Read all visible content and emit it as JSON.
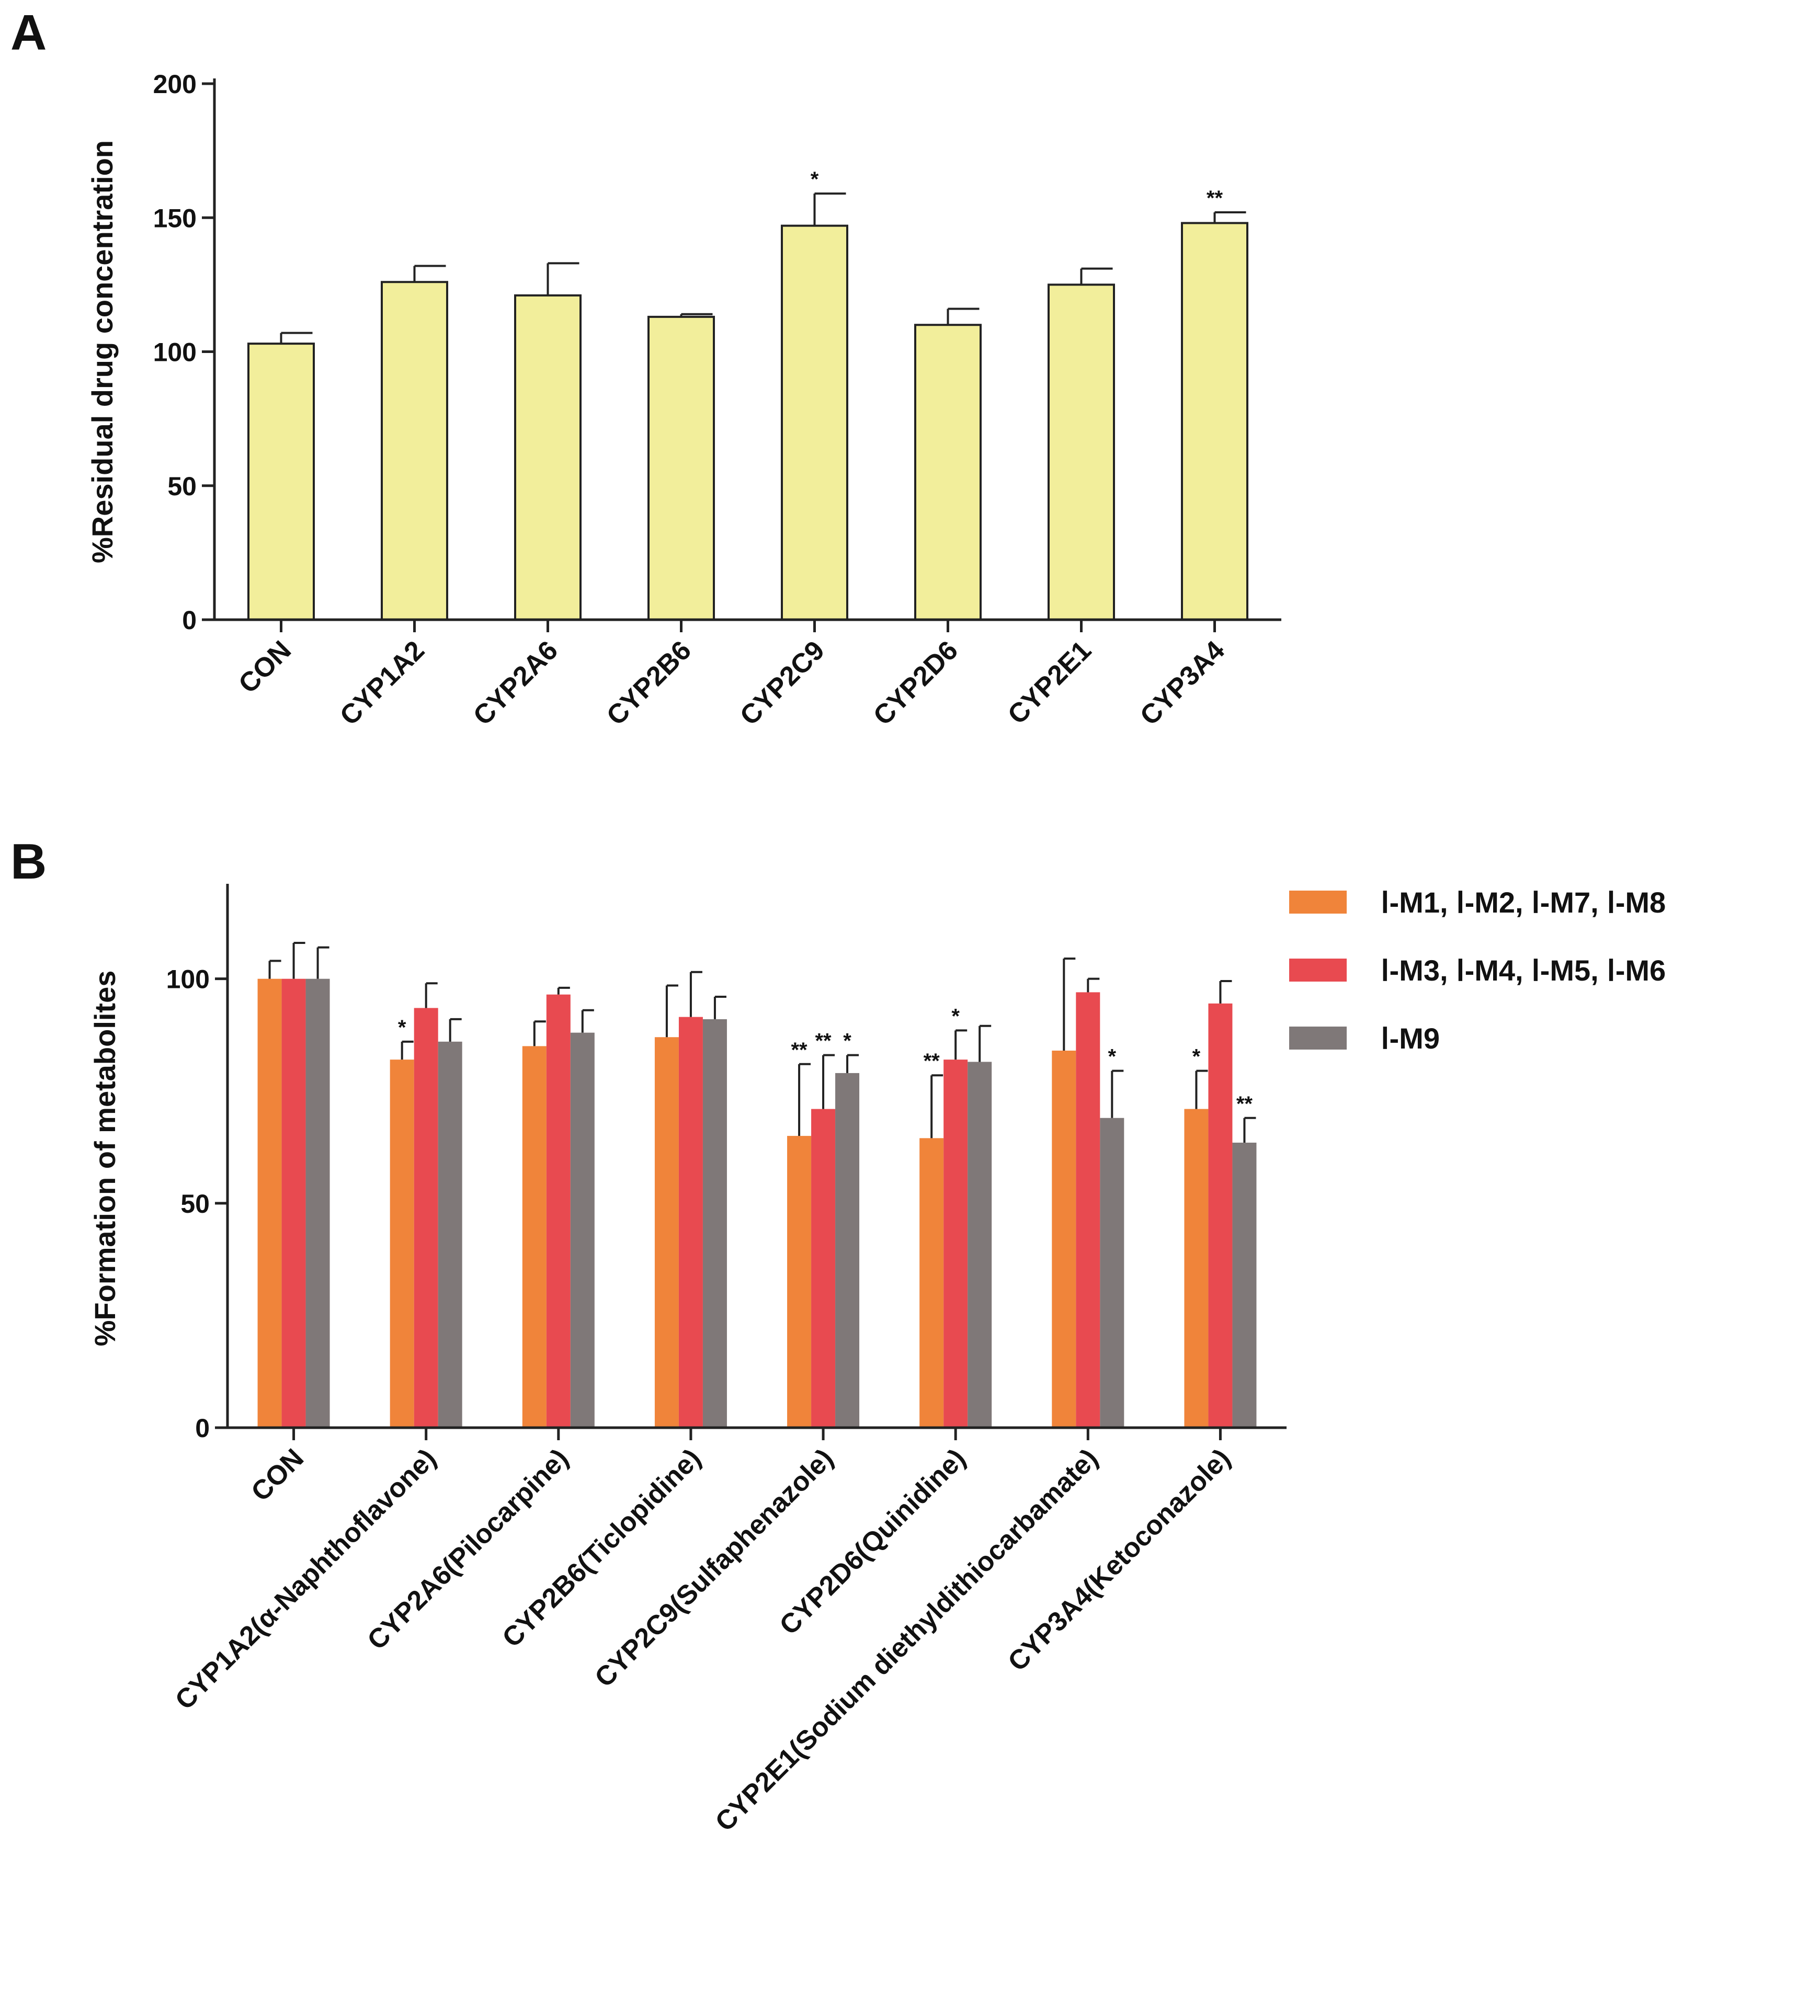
{
  "chart_data": [
    {
      "panel": "A",
      "type": "bar",
      "title": "",
      "xlabel": "",
      "ylabel": "%Residual drug concentration",
      "ylim": [
        0,
        200
      ],
      "yticks": [
        0,
        50,
        100,
        150,
        200
      ],
      "grid": false,
      "bar_color": "#f2ee9b",
      "categories": [
        "CON",
        "CYP1A2",
        "CYP2A6",
        "CYP2B6",
        "CYP2C9",
        "CYP2D6",
        "CYP2E1",
        "CYP3A4"
      ],
      "values": [
        103,
        126,
        121,
        113,
        147,
        110,
        125,
        148
      ],
      "errors": [
        4,
        6,
        12,
        1,
        12,
        6,
        6,
        4
      ],
      "significance": [
        "",
        "",
        "",
        "",
        "*",
        "",
        "",
        "**"
      ]
    },
    {
      "panel": "B",
      "type": "bar",
      "title": "",
      "xlabel": "",
      "ylabel": "%Formation of metabolites",
      "ylim": [
        0,
        120
      ],
      "yticks": [
        0,
        50,
        100
      ],
      "grid": false,
      "legend_position": "top-right",
      "categories": [
        "CON",
        "CYP1A2(α-Naphthoflavone)",
        "CYP2A6(Pilocarpine)",
        "CYP2B6(Ticlopidine)",
        "CYP2C9(Sulfaphenazole)",
        "CYP2D6(Quinidine)",
        "CYP2E1(Sodium diethyldithiocarbamate)",
        "CYP3A4(Ketoconazole)"
      ],
      "series": [
        {
          "name": "Ⅰ-M1, Ⅰ-M2, Ⅰ-M7, Ⅰ-M8",
          "color": "#f0843a",
          "values": [
            100,
            82,
            85,
            87,
            65,
            64.5,
            84,
            71
          ],
          "errors": [
            4,
            4,
            5.5,
            11.5,
            16,
            14,
            20.5,
            8.5
          ],
          "significance": [
            "",
            "*",
            "",
            "",
            "**",
            "**",
            "",
            "*"
          ]
        },
        {
          "name": "Ⅰ-M3, Ⅰ-M4, Ⅰ-M5, Ⅰ-M6",
          "color": "#e84a50",
          "values": [
            100,
            93.5,
            96.5,
            91.5,
            71,
            82,
            97,
            94.5
          ],
          "errors": [
            8,
            5.5,
            1.5,
            10,
            12,
            6.5,
            3,
            5
          ],
          "significance": [
            "",
            "",
            "",
            "",
            "**",
            "*",
            "",
            ""
          ]
        },
        {
          "name": "Ⅰ-M9",
          "color": "#7f7878",
          "values": [
            100,
            86,
            88,
            91,
            79,
            81.5,
            69,
            63.5
          ],
          "errors": [
            7,
            5,
            5,
            5,
            4,
            8,
            10.5,
            5.5
          ],
          "significance": [
            "",
            "",
            "",
            "",
            "*",
            "",
            "*",
            "**"
          ]
        }
      ]
    }
  ]
}
